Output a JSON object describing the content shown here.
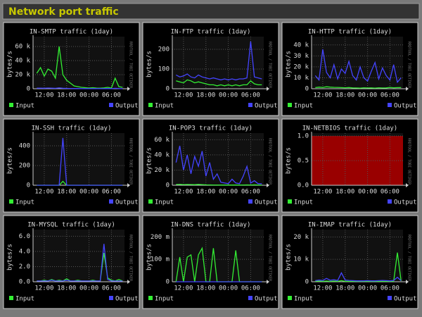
{
  "header": {
    "title": "Network port traffic"
  },
  "chart_data": [
    {
      "type": "line",
      "title": "IN-SMTP traffic  (1day)",
      "ylabel": "bytes/s",
      "watermark": "RRDTOOL / TOBI OETIKER",
      "x": [
        10,
        11,
        12,
        13,
        14,
        15,
        16,
        17,
        18,
        19,
        20,
        21,
        22,
        23,
        24,
        25,
        26,
        27,
        28,
        29,
        30,
        31,
        32,
        33
      ],
      "xlim": [
        9,
        33.5
      ],
      "xticks": [
        {
          "value": 12,
          "label": "12:00"
        },
        {
          "value": 18,
          "label": "18:00"
        },
        {
          "value": 24,
          "label": "00:00"
        },
        {
          "value": 30,
          "label": "06:00"
        }
      ],
      "ylim": [
        0,
        70000
      ],
      "yticks": [
        0,
        {
          "value": 20000,
          "label": "20 k"
        },
        {
          "value": 40000,
          "label": "40 k"
        },
        {
          "value": 60000,
          "label": "60 k"
        }
      ],
      "grid": true,
      "series": [
        {
          "name": "Input",
          "color": "#33ee33",
          "values": [
            22000,
            30000,
            18000,
            28000,
            25000,
            15000,
            60000,
            20000,
            12000,
            8000,
            4000,
            3000,
            2000,
            1500,
            1000,
            1500,
            1000,
            800,
            1200,
            2000,
            1000,
            15000,
            3000,
            2000
          ]
        },
        {
          "name": "Output",
          "color": "#4444ff",
          "values": [
            800,
            900,
            700,
            1000,
            800,
            600,
            1200,
            700,
            500,
            400,
            300,
            300,
            200,
            200,
            200,
            200,
            200,
            200,
            200,
            300,
            200,
            600,
            300,
            200
          ]
        }
      ]
    },
    {
      "type": "line",
      "title": "IN-FTP traffic  (1day)",
      "ylabel": "bytes/s",
      "watermark": "RRDTOOL / TOBI OETIKER",
      "x": [
        10,
        11,
        12,
        13,
        14,
        15,
        16,
        17,
        18,
        19,
        20,
        21,
        22,
        23,
        24,
        25,
        26,
        27,
        28,
        29,
        30,
        31,
        32,
        33
      ],
      "xlim": [
        9,
        33.5
      ],
      "xticks": [
        {
          "value": 12,
          "label": "12:00"
        },
        {
          "value": 18,
          "label": "18:00"
        },
        {
          "value": 24,
          "label": "00:00"
        },
        {
          "value": 30,
          "label": "06:00"
        }
      ],
      "ylim": [
        0,
        250
      ],
      "yticks": [
        0,
        100,
        200
      ],
      "grid": true,
      "series": [
        {
          "name": "Input",
          "color": "#33ee33",
          "values": [
            40,
            35,
            30,
            45,
            40,
            30,
            35,
            30,
            25,
            20,
            20,
            15,
            20,
            15,
            20,
            15,
            20,
            15,
            20,
            20,
            40,
            25,
            20,
            20
          ]
        },
        {
          "name": "Output",
          "color": "#4444ff",
          "values": [
            70,
            60,
            65,
            75,
            60,
            55,
            70,
            60,
            55,
            50,
            55,
            50,
            45,
            50,
            45,
            50,
            45,
            50,
            50,
            55,
            240,
            60,
            55,
            50
          ]
        }
      ]
    },
    {
      "type": "line",
      "title": "IN-HTTP traffic  (1day)",
      "ylabel": "bytes/s",
      "watermark": "RRDTOOL / TOBI OETIKER",
      "x": [
        10,
        11,
        12,
        13,
        14,
        15,
        16,
        17,
        18,
        19,
        20,
        21,
        22,
        23,
        24,
        25,
        26,
        27,
        28,
        29,
        30,
        31,
        32,
        33
      ],
      "xlim": [
        9,
        33.5
      ],
      "xticks": [
        {
          "value": 12,
          "label": "12:00"
        },
        {
          "value": 18,
          "label": "18:00"
        },
        {
          "value": 24,
          "label": "00:00"
        },
        {
          "value": 30,
          "label": "06:00"
        }
      ],
      "ylim": [
        0,
        45000
      ],
      "yticks": [
        0,
        {
          "value": 10000,
          "label": "10 k"
        },
        {
          "value": 20000,
          "label": "20 k"
        },
        {
          "value": 30000,
          "label": "30 k"
        },
        {
          "value": 40000,
          "label": "40 k"
        }
      ],
      "grid": true,
      "series": [
        {
          "name": "Input",
          "color": "#33ee33",
          "values": [
            1000,
            1500,
            1200,
            1800,
            1500,
            1300,
            1200,
            1000,
            900,
            1100,
            800,
            700,
            600,
            900,
            700,
            800,
            600,
            900,
            700,
            800,
            1200,
            900,
            1000,
            1100
          ]
        },
        {
          "name": "Output",
          "color": "#4444ff",
          "values": [
            12000,
            8000,
            36000,
            15000,
            10000,
            22000,
            9000,
            18000,
            14000,
            25000,
            12000,
            8000,
            20000,
            10000,
            7000,
            16000,
            24000,
            9000,
            19000,
            12000,
            8000,
            22000,
            6000,
            10000
          ]
        }
      ]
    },
    {
      "type": "line",
      "title": "IN-SSH traffic  (1day)",
      "ylabel": "bytes/s",
      "watermark": "RRDTOOL / TOBI OETIKER",
      "x": [
        10,
        11,
        12,
        13,
        14,
        15,
        16,
        17,
        18,
        19,
        20,
        21,
        22,
        23,
        24,
        25,
        26,
        27,
        28,
        29,
        30,
        31,
        32,
        33
      ],
      "xlim": [
        9,
        33.5
      ],
      "xticks": [
        {
          "value": 12,
          "label": "12:00"
        },
        {
          "value": 18,
          "label": "18:00"
        },
        {
          "value": 24,
          "label": "00:00"
        },
        {
          "value": 30,
          "label": "06:00"
        }
      ],
      "ylim": [
        0,
        500
      ],
      "yticks": [
        0,
        200,
        400
      ],
      "grid": true,
      "series": [
        {
          "name": "Input",
          "color": "#33ee33",
          "values": [
            0,
            0,
            0,
            0,
            0,
            0,
            0,
            40,
            0,
            0,
            0,
            0,
            0,
            0,
            0,
            0,
            0,
            0,
            0,
            0,
            0,
            0,
            0,
            0
          ]
        },
        {
          "name": "Output",
          "color": "#4444ff",
          "values": [
            0,
            0,
            0,
            0,
            0,
            0,
            0,
            480,
            0,
            0,
            0,
            0,
            0,
            0,
            0,
            0,
            0,
            0,
            0,
            0,
            0,
            0,
            0,
            0
          ]
        }
      ]
    },
    {
      "type": "line",
      "title": "IN-POP3 traffic  (1day)",
      "ylabel": "bytes/s",
      "watermark": "RRDTOOL / TOBI OETIKER",
      "x": [
        10,
        11,
        12,
        13,
        14,
        15,
        16,
        17,
        18,
        19,
        20,
        21,
        22,
        23,
        24,
        25,
        26,
        27,
        28,
        29,
        30,
        31,
        32,
        33
      ],
      "xlim": [
        9,
        33.5
      ],
      "xticks": [
        {
          "value": 12,
          "label": "12:00"
        },
        {
          "value": 18,
          "label": "18:00"
        },
        {
          "value": 24,
          "label": "00:00"
        },
        {
          "value": 30,
          "label": "06:00"
        }
      ],
      "ylim": [
        0,
        65000
      ],
      "yticks": [
        0,
        {
          "value": 20000,
          "label": "20 k"
        },
        {
          "value": 40000,
          "label": "40 k"
        },
        {
          "value": 60000,
          "label": "60 k"
        }
      ],
      "grid": true,
      "series": [
        {
          "name": "Input",
          "color": "#33ee33",
          "values": [
            1000,
            1200,
            800,
            1000,
            900,
            700,
            1100,
            800,
            600,
            500,
            400,
            400,
            300,
            300,
            300,
            300,
            300,
            300,
            400,
            500,
            400,
            600,
            400,
            300
          ]
        },
        {
          "name": "Output",
          "color": "#4444ff",
          "values": [
            30000,
            52000,
            20000,
            40000,
            15000,
            38000,
            25000,
            45000,
            12000,
            30000,
            8000,
            15000,
            4000,
            3000,
            2000,
            8000,
            3000,
            2000,
            12000,
            25000,
            3000,
            6000,
            2000,
            2000
          ]
        }
      ]
    },
    {
      "type": "line",
      "title": "IN-NETBIOS traffic  (1day)",
      "ylabel": "bytes/s",
      "watermark": "RRDTOOL / TOBI OETIKER",
      "unknown_color": "#990000",
      "x": [
        10,
        11,
        12,
        13,
        14,
        15,
        16,
        17,
        18,
        19,
        20,
        21,
        22,
        23,
        24,
        25,
        26,
        27,
        28,
        29,
        30,
        31,
        32,
        33
      ],
      "xlim": [
        9,
        33.5
      ],
      "xticks": [
        {
          "value": 12,
          "label": "12:00"
        },
        {
          "value": 18,
          "label": "18:00"
        },
        {
          "value": 24,
          "label": "00:00"
        },
        {
          "value": 30,
          "label": "06:00"
        }
      ],
      "ylim": [
        0,
        1
      ],
      "yticks": [
        {
          "value": 0,
          "label": "0.0"
        },
        {
          "value": 0.5,
          "label": "0.5"
        },
        {
          "value": 1,
          "label": "1.0"
        }
      ],
      "grid": true,
      "series": [
        {
          "name": "Input",
          "color": "#33ee33",
          "values": [
            null,
            null,
            null,
            null,
            null,
            null,
            null,
            null,
            null,
            null,
            null,
            null,
            null,
            null,
            null,
            null,
            null,
            null,
            null,
            null,
            null,
            null,
            null,
            null
          ]
        },
        {
          "name": "Output",
          "color": "#4444ff",
          "values": [
            null,
            null,
            null,
            null,
            null,
            null,
            null,
            null,
            null,
            null,
            null,
            null,
            null,
            null,
            null,
            null,
            null,
            null,
            null,
            null,
            null,
            null,
            null,
            null
          ]
        }
      ]
    },
    {
      "type": "line",
      "title": "IN-MYSQL traffic  (1day)",
      "ylabel": "bytes/s",
      "watermark": "RRDTOOL / TOBI OETIKER",
      "x": [
        10,
        11,
        12,
        13,
        14,
        15,
        16,
        17,
        18,
        19,
        20,
        21,
        22,
        23,
        24,
        25,
        26,
        27,
        28,
        29,
        30,
        31,
        32,
        33
      ],
      "xlim": [
        9,
        33.5
      ],
      "xticks": [
        {
          "value": 12,
          "label": "12:00"
        },
        {
          "value": 18,
          "label": "18:00"
        },
        {
          "value": 24,
          "label": "00:00"
        },
        {
          "value": 30,
          "label": "06:00"
        }
      ],
      "ylim": [
        0,
        6.5
      ],
      "yticks": [
        {
          "value": 0,
          "label": "0.0"
        },
        {
          "value": 2,
          "label": "2.0"
        },
        {
          "value": 4,
          "label": "4.0"
        },
        {
          "value": 6,
          "label": "6.0"
        }
      ],
      "grid": true,
      "series": [
        {
          "name": "Input",
          "color": "#33ee33",
          "values": [
            0.1,
            0.1,
            0.2,
            0.1,
            0.3,
            0.1,
            0.2,
            0.1,
            0.4,
            0.1,
            0.1,
            0.2,
            0.1,
            0.1,
            0.1,
            0.2,
            0.1,
            0.1,
            3.8,
            0.5,
            0.2,
            0.1,
            0.3,
            0.1
          ]
        },
        {
          "name": "Output",
          "color": "#4444ff",
          "values": [
            0.1,
            0.1,
            0.1,
            0.1,
            0.2,
            0.1,
            0.1,
            0.1,
            0.2,
            0.1,
            0.1,
            0.1,
            0.1,
            0.1,
            0.1,
            0.1,
            0.1,
            0.1,
            5.0,
            0.3,
            0.1,
            0.1,
            0.1,
            0.1
          ]
        }
      ]
    },
    {
      "type": "line",
      "title": "IN-DNS traffic  (1day)",
      "ylabel": "bytes/s",
      "watermark": "RRDTOOL / TOBI OETIKER",
      "x": [
        10,
        11,
        12,
        13,
        14,
        15,
        16,
        17,
        18,
        19,
        20,
        21,
        22,
        23,
        24,
        25,
        26,
        27,
        28,
        29,
        30,
        31,
        32,
        33
      ],
      "xlim": [
        9,
        33.5
      ],
      "xticks": [
        {
          "value": 12,
          "label": "12:00"
        },
        {
          "value": 18,
          "label": "18:00"
        },
        {
          "value": 24,
          "label": "00:00"
        },
        {
          "value": 30,
          "label": "06:00"
        }
      ],
      "ylim": [
        0,
        0.22
      ],
      "yticks": [
        0,
        {
          "value": 0.1,
          "label": "100 m"
        },
        {
          "value": 0.2,
          "label": "200 m"
        }
      ],
      "grid": true,
      "series": [
        {
          "name": "Input",
          "color": "#33ee33",
          "values": [
            0,
            0.11,
            0,
            0.11,
            0.12,
            0,
            0.12,
            0.15,
            0,
            0,
            0.15,
            0,
            0,
            0,
            0,
            0,
            0.14,
            0,
            0,
            0,
            0,
            0,
            0,
            0
          ]
        },
        {
          "name": "Output",
          "color": "#4444ff",
          "values": [
            0,
            0,
            0,
            0,
            0,
            0,
            0,
            0,
            0,
            0,
            0,
            0,
            0,
            0,
            0,
            0,
            0,
            0,
            0,
            0,
            0,
            0,
            0,
            0
          ]
        }
      ]
    },
    {
      "type": "line",
      "title": "IN-IMAP traffic  (1day)",
      "ylabel": "bytes/s",
      "watermark": "RRDTOOL / TOBI OETIKER",
      "x": [
        10,
        11,
        12,
        13,
        14,
        15,
        16,
        17,
        18,
        19,
        20,
        21,
        22,
        23,
        24,
        25,
        26,
        27,
        28,
        29,
        30,
        31,
        32,
        33
      ],
      "xlim": [
        9,
        33.5
      ],
      "xticks": [
        {
          "value": 12,
          "label": "12:00"
        },
        {
          "value": 18,
          "label": "18:00"
        },
        {
          "value": 24,
          "label": "00:00"
        },
        {
          "value": 30,
          "label": "06:00"
        }
      ],
      "ylim": [
        0,
        22000
      ],
      "yticks": [
        0,
        {
          "value": 10000,
          "label": "10 k"
        },
        {
          "value": 20000,
          "label": "20 k"
        }
      ],
      "grid": true,
      "series": [
        {
          "name": "Input",
          "color": "#33ee33",
          "values": [
            200,
            300,
            200,
            300,
            200,
            300,
            200,
            500,
            200,
            200,
            200,
            200,
            200,
            200,
            200,
            200,
            200,
            200,
            200,
            200,
            200,
            200,
            13000,
            300
          ]
        },
        {
          "name": "Output",
          "color": "#4444ff",
          "values": [
            500,
            800,
            600,
            1500,
            700,
            900,
            600,
            4000,
            800,
            600,
            500,
            400,
            400,
            400,
            500,
            400,
            400,
            500,
            600,
            500,
            400,
            600,
            2000,
            500
          ]
        }
      ]
    }
  ]
}
